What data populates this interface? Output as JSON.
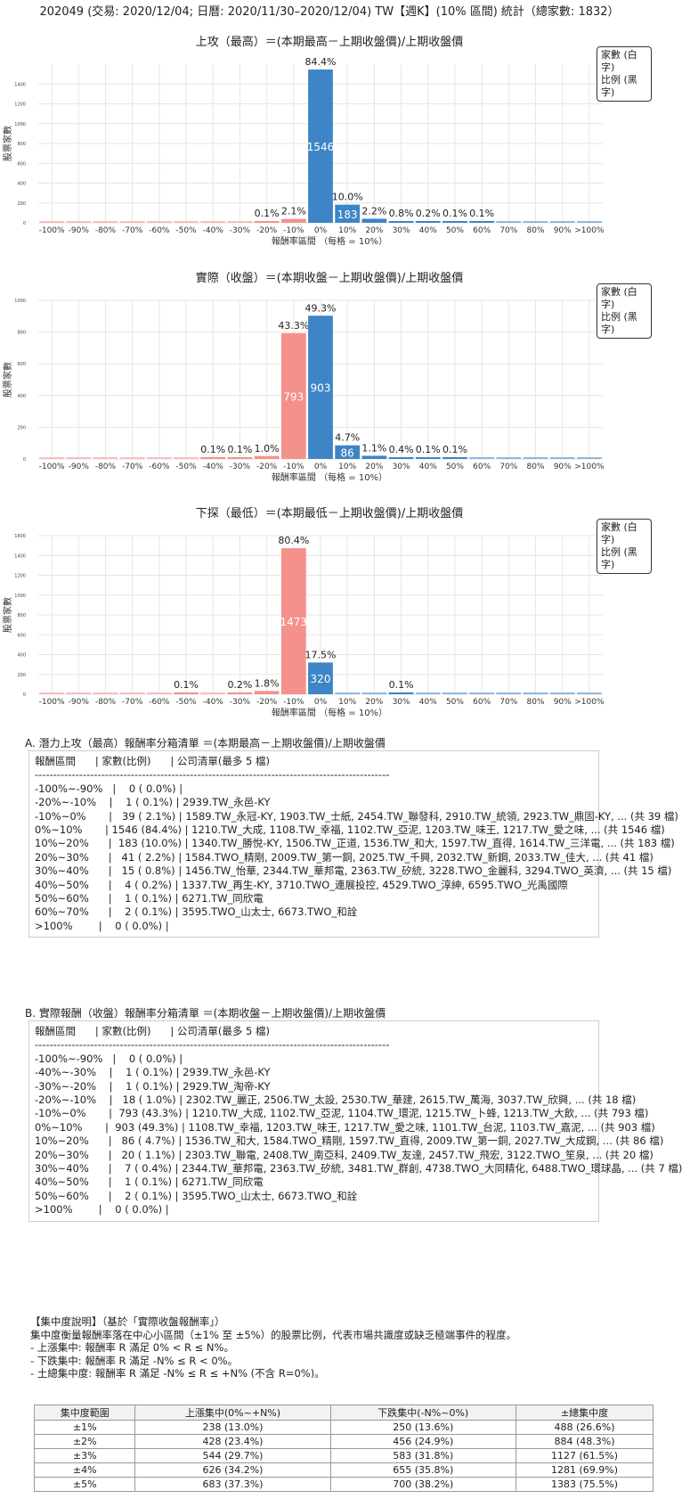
{
  "page_title": "202049 (交易: 2020/12/04; 日曆: 2020/11/30–2020/12/04) TW【週K】(10% 區間) 統計（總家數: 1832）",
  "legend": {
    "line1": "家數 (白字)",
    "line2": "比例 (黑字)"
  },
  "colors": {
    "positive": "#3d85c6",
    "negative": "#f4918a",
    "grid": "#e6e6e6"
  },
  "chart_data": [
    {
      "type": "bar",
      "title": "上攻（最高）＝(本期最高－上期收盤價)/上期收盤價",
      "xlabel": "報酬率區間 （每格 = 10%）",
      "ylabel": "股票家數",
      "ylim": [
        0,
        1600
      ],
      "yticks": [
        0,
        200,
        400,
        600,
        800,
        1000,
        1200,
        1400
      ],
      "categories": [
        "-100%",
        "-90%",
        "-80%",
        "-70%",
        "-60%",
        "-50%",
        "-40%",
        "-30%",
        "-20%",
        "-10%",
        "0%",
        "10%",
        "20%",
        "30%",
        "40%",
        "50%",
        "60%",
        "70%",
        "80%",
        "90%",
        ">100%"
      ],
      "values": [
        0,
        0,
        0,
        0,
        0,
        0,
        0,
        0,
        1,
        39,
        1546,
        183,
        41,
        15,
        4,
        1,
        2,
        0,
        0,
        0,
        0
      ],
      "labels": [
        "",
        "",
        "",
        "",
        "",
        "",
        "",
        "",
        "0.1%",
        "2.1%",
        "84.4%",
        "10.0%",
        "2.2%",
        "0.8%",
        "0.2%",
        "0.1%",
        "0.1%",
        "",
        "",
        "",
        ""
      ]
    },
    {
      "type": "bar",
      "title": "實際（收盤）＝(本期收盤－上期收盤價)/上期收盤價",
      "xlabel": "報酬率區間 （每格 = 10%）",
      "ylabel": "股票家數",
      "ylim": [
        0,
        1000
      ],
      "yticks": [
        0,
        200,
        400,
        600,
        800,
        1000
      ],
      "categories": [
        "-100%",
        "-90%",
        "-80%",
        "-70%",
        "-60%",
        "-50%",
        "-40%",
        "-30%",
        "-20%",
        "-10%",
        "0%",
        "10%",
        "20%",
        "30%",
        "40%",
        "50%",
        "60%",
        "70%",
        "80%",
        "90%",
        ">100%"
      ],
      "values": [
        0,
        0,
        0,
        0,
        0,
        0,
        1,
        1,
        18,
        793,
        903,
        86,
        20,
        7,
        1,
        2,
        0,
        0,
        0,
        0,
        0
      ],
      "labels": [
        "",
        "",
        "",
        "",
        "",
        "",
        "0.1%",
        "0.1%",
        "1.0%",
        "43.3%",
        "49.3%",
        "4.7%",
        "1.1%",
        "0.4%",
        "0.1%",
        "0.1%",
        "",
        "",
        "",
        "",
        ""
      ]
    },
    {
      "type": "bar",
      "title": "下探（最低）＝(本期最低－上期收盤價)/上期收盤價",
      "xlabel": "報酬率區間 （每格 = 10%）",
      "ylabel": "股票家數",
      "ylim": [
        0,
        1600
      ],
      "yticks": [
        0,
        200,
        400,
        600,
        800,
        1000,
        1200,
        1400,
        1600
      ],
      "categories": [
        "-100%",
        "-90%",
        "-80%",
        "-70%",
        "-60%",
        "-50%",
        "-40%",
        "-30%",
        "-20%",
        "-10%",
        "0%",
        "10%",
        "20%",
        "30%",
        "40%",
        "50%",
        "60%",
        "70%",
        "80%",
        "90%",
        ">100%"
      ],
      "values": [
        0,
        0,
        0,
        0,
        0,
        1,
        0,
        3,
        33,
        1473,
        320,
        0,
        0,
        2,
        0,
        0,
        0,
        0,
        0,
        0,
        0
      ],
      "labels": [
        "",
        "",
        "",
        "",
        "",
        "0.1%",
        "",
        "0.2%",
        "1.8%",
        "80.4%",
        "17.5%",
        "",
        "",
        "0.1%",
        "",
        "",
        "",
        "",
        "",
        "",
        ""
      ]
    }
  ],
  "list_a": {
    "title": "A. 潛力上攻（最高）報酬率分箱清單 ＝(本期最高－上期收盤價)/上期收盤價",
    "rows": [
      "報酬區間      | 家數(比例)      | 公司清單(最多 5 檔)",
      "------------------------------------------------------------------------------------------------",
      "-100%~-90%   |    0 ( 0.0%) |",
      "-20%~-10%    |    1 ( 0.1%) | 2939.TW_永邑-KY",
      "-10%~0%       |   39 ( 2.1%) | 1589.TW_永冠-KY, 1903.TW_士紙, 2454.TW_聯發科, 2910.TW_統領, 2923.TW_鼎固-KY, ... (共 39 檔)",
      "0%~10%       | 1546 (84.4%) | 1210.TW_大成, 1108.TW_幸福, 1102.TW_亞泥, 1203.TW_味王, 1217.TW_愛之味, ... (共 1546 檔)",
      "10%~20%      |  183 (10.0%) | 1340.TW_勝悅-KY, 1506.TW_正道, 1536.TW_和大, 1597.TW_直得, 1614.TW_三洋電, ... (共 183 檔)",
      "20%~30%      |   41 ( 2.2%) | 1584.TWO_精剛, 2009.TW_第一銅, 2025.TW_千興, 2032.TW_新鋼, 2033.TW_佳大, ... (共 41 檔)",
      "30%~40%      |   15 ( 0.8%) | 1456.TW_怡華, 2344.TW_華邦電, 2363.TW_矽統, 3228.TWO_金麗科, 3294.TWO_英濟, ... (共 15 檔)",
      "40%~50%      |    4 ( 0.2%) | 1337.TW_再生-KY, 3710.TWO_連展投控, 4529.TWO_淳紳, 6595.TWO_光禹國際",
      "50%~60%      |    1 ( 0.1%) | 6271.TW_同欣電",
      "60%~70%      |    2 ( 0.1%) | 3595.TWO_山太士, 6673.TWO_和詮",
      ">100%        |    0 ( 0.0%) |"
    ]
  },
  "list_b": {
    "title": "B. 實際報酬（收盤）報酬率分箱清單 ＝(本期收盤－上期收盤價)/上期收盤價",
    "rows": [
      "報酬區間      | 家數(比例)      | 公司清單(最多 5 檔)",
      "------------------------------------------------------------------------------------------------",
      "-100%~-90%   |    0 ( 0.0%) |",
      "-40%~-30%    |    1 ( 0.1%) | 2939.TW_永邑-KY",
      "-30%~-20%    |    1 ( 0.1%) | 2929.TW_淘帝-KY",
      "-20%~-10%    |   18 ( 1.0%) | 2302.TW_麗正, 2506.TW_太設, 2530.TW_華建, 2615.TW_萬海, 3037.TW_欣興, ... (共 18 檔)",
      "-10%~0%       |  793 (43.3%) | 1210.TW_大成, 1102.TW_亞泥, 1104.TW_環泥, 1215.TW_卜蜂, 1213.TW_大飲, ... (共 793 檔)",
      "0%~10%       |  903 (49.3%) | 1108.TW_幸福, 1203.TW_味王, 1217.TW_愛之味, 1101.TW_台泥, 1103.TW_嘉泥, ... (共 903 檔)",
      "10%~20%      |   86 ( 4.7%) | 1536.TW_和大, 1584.TWO_精剛, 1597.TW_直得, 2009.TW_第一銅, 2027.TW_大成鋼, ... (共 86 檔)",
      "20%~30%      |   20 ( 1.1%) | 2303.TW_聯電, 2408.TW_南亞科, 2409.TW_友達, 2457.TW_飛宏, 3122.TWO_笙泉, ... (共 20 檔)",
      "30%~40%      |    7 ( 0.4%) | 2344.TW_華邦電, 2363.TW_矽統, 3481.TW_群創, 4738.TWO_大同精化, 6488.TWO_環球晶, ... (共 7 檔)",
      "40%~50%      |    1 ( 0.1%) | 6271.TW_同欣電",
      "50%~60%      |    2 ( 0.1%) | 3595.TWO_山太士, 6673.TWO_和詮",
      ">100%        |    0 ( 0.0%) |"
    ]
  },
  "concentration": {
    "heading": "【集中度說明】（基於「實際收盤報酬率」）",
    "desc": "集中度衡量報酬率落在中心小區間（±1% 至 ±5%）的股票比例，代表市場共識度或缺乏極端事件的程度。",
    "bullets": [
      "- 上漲集中: 報酬率 R 滿足 0% < R ≤ N%。",
      "- 下跌集中: 報酬率 R 滿足 -N% ≤ R < 0%。",
      "- 土總集中度: 報酬率 R 滿足 -N% ≤ R ≤ +N% (不含 R=0%)。"
    ],
    "table": {
      "headers": [
        "集中度範圍",
        "上漲集中(0%~+N%)",
        "下跌集中(-N%~0%)",
        "±總集中度"
      ],
      "rows": [
        [
          "±1%",
          "238 (13.0%)",
          "250 (13.6%)",
          "488 (26.6%)"
        ],
        [
          "±2%",
          "428 (23.4%)",
          "456 (24.9%)",
          "884 (48.3%)"
        ],
        [
          "±3%",
          "544 (29.7%)",
          "583 (31.8%)",
          "1127 (61.5%)"
        ],
        [
          "±4%",
          "626 (34.2%)",
          "655 (35.8%)",
          "1281 (69.9%)"
        ],
        [
          "±5%",
          "683 (37.3%)",
          "700 (38.2%)",
          "1383 (75.5%)"
        ]
      ]
    }
  }
}
